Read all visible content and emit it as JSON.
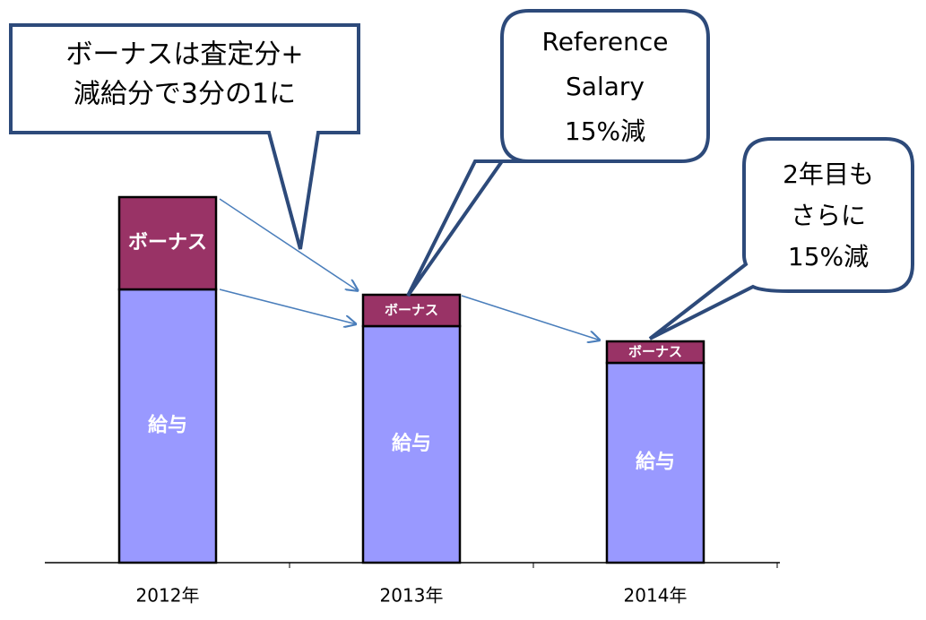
{
  "chart_data": {
    "type": "stacked_bar",
    "categories": [
      "2012年",
      "2013年",
      "2014年"
    ],
    "series": [
      {
        "name": "給与",
        "color": "#9999ff",
        "values": [
          305,
          264,
          223
        ]
      },
      {
        "name": "ボーナス",
        "color": "#993366",
        "values": [
          103,
          35,
          24
        ]
      }
    ],
    "ylim": [
      0,
      420
    ],
    "annotations": [
      {
        "lines": [
          "ボーナスは査定分+",
          "減給分で3分の1に"
        ]
      },
      {
        "lines": [
          "Reference",
          "Salary",
          "15%減"
        ]
      },
      {
        "lines": [
          "2年目も",
          "さらに",
          "15%減"
        ]
      }
    ]
  }
}
